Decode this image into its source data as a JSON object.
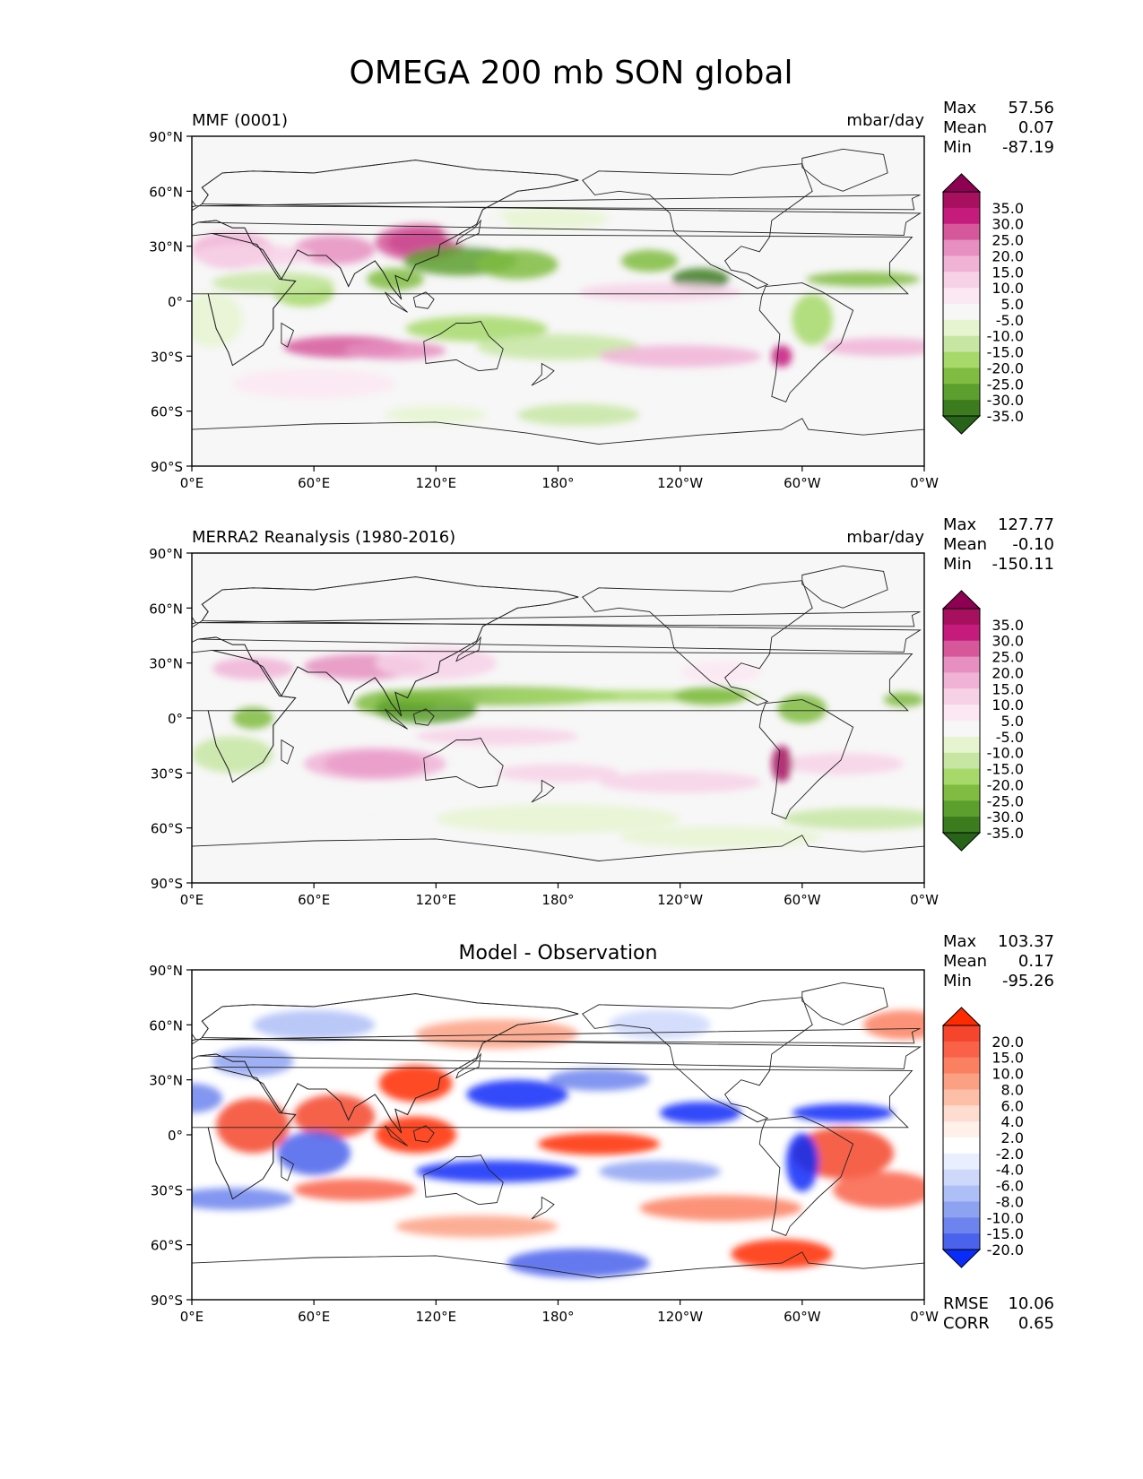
{
  "title": "OMEGA 200 mb SON global",
  "panels": [
    {
      "label_left": "MMF (0001)",
      "label_right": "mbar/day",
      "center_title": "",
      "stats": [
        {
          "name": "Max",
          "value": "57.56"
        },
        {
          "name": "Mean",
          "value": "0.07"
        },
        {
          "name": "Min",
          "value": "-87.19"
        }
      ],
      "colormap": "PiYG-reversed",
      "colorbar_levels": [
        "35.0",
        "30.0",
        "25.0",
        "20.0",
        "15.0",
        "10.0",
        "5.0",
        "-5.0",
        "-10.0",
        "-15.0",
        "-20.0",
        "-25.0",
        "-30.0",
        "-35.0"
      ],
      "colorbar_colors": [
        "#8e0152",
        "#a7105f",
        "#c51b7d",
        "#d6589b",
        "#e68fc0",
        "#f0b3d6",
        "#f7d2e7",
        "#fbe8f2",
        "#f7f7f7",
        "#e6f5d0",
        "#c7e6a3",
        "#a6d96a",
        "#7fbc41",
        "#5c9f2e",
        "#3c7c1e",
        "#276419"
      ],
      "rmse": "",
      "corr": ""
    },
    {
      "label_left": "MERRA2 Reanalysis (1980-2016)",
      "label_right": "mbar/day",
      "center_title": "",
      "stats": [
        {
          "name": "Max",
          "value": "127.77"
        },
        {
          "name": "Mean",
          "value": "-0.10"
        },
        {
          "name": "Min",
          "value": "-150.11"
        }
      ],
      "colormap": "PiYG-reversed",
      "colorbar_levels": [
        "35.0",
        "30.0",
        "25.0",
        "20.0",
        "15.0",
        "10.0",
        "5.0",
        "-5.0",
        "-10.0",
        "-15.0",
        "-20.0",
        "-25.0",
        "-30.0",
        "-35.0"
      ],
      "colorbar_colors": [
        "#8e0152",
        "#a7105f",
        "#c51b7d",
        "#d6589b",
        "#e68fc0",
        "#f0b3d6",
        "#f7d2e7",
        "#fbe8f2",
        "#f7f7f7",
        "#e6f5d0",
        "#c7e6a3",
        "#a6d96a",
        "#7fbc41",
        "#5c9f2e",
        "#3c7c1e",
        "#276419"
      ],
      "rmse": "",
      "corr": ""
    },
    {
      "label_left": "",
      "label_right": "",
      "center_title": "Model - Observation",
      "stats": [
        {
          "name": "Max",
          "value": "103.37"
        },
        {
          "name": "Mean",
          "value": "0.17"
        },
        {
          "name": "Min",
          "value": "-95.26"
        }
      ],
      "colormap": "bwr-reversed",
      "colorbar_levels": [
        "20.0",
        "15.0",
        "10.0",
        "8.0",
        "6.0",
        "4.0",
        "2.0",
        "-2.0",
        "-4.0",
        "-6.0",
        "-8.0",
        "-10.0",
        "-15.0",
        "-20.0"
      ],
      "colorbar_colors": [
        "#ff2a00",
        "#f5452c",
        "#f96248",
        "#fb8061",
        "#fca083",
        "#fdbfa8",
        "#fedcd0",
        "#fff0ea",
        "#ffffff",
        "#eaefff",
        "#cdd8fb",
        "#aebef7",
        "#8ea2f2",
        "#6d84ee",
        "#4a62ec",
        "#0a2cf8"
      ],
      "rmse": "10.06",
      "corr": "0.65"
    }
  ],
  "stat_labels": {
    "rmse": "RMSE",
    "corr": "CORR"
  },
  "xticks": [
    "0°E",
    "60°E",
    "120°E",
    "180°",
    "120°W",
    "60°W",
    "0°W"
  ],
  "yticks": [
    "90°N",
    "60°N",
    "30°N",
    "0°",
    "30°S",
    "60°S",
    "90°S"
  ],
  "map_background": "#f7f7f7",
  "diff_background": "#ffffff"
}
